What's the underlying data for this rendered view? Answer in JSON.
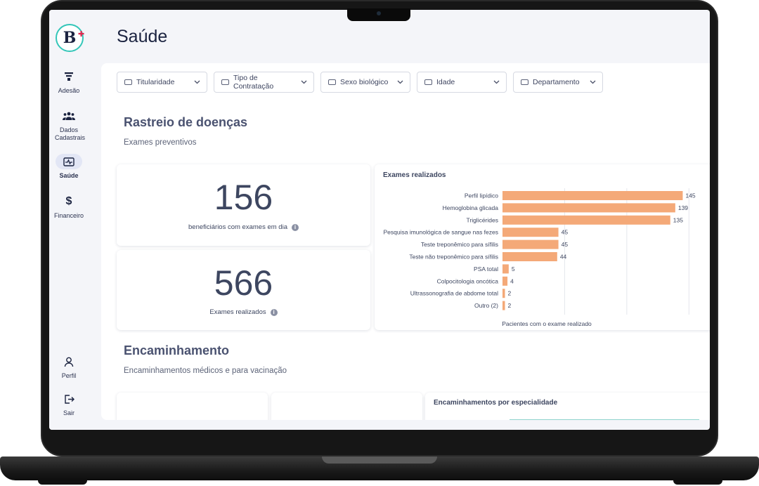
{
  "page": {
    "title": "Saúde"
  },
  "sidebar": {
    "logo_letter": "B",
    "items": [
      {
        "label": "Adesão",
        "icon": "funnel-icon",
        "active": false
      },
      {
        "label": "Dados Cadastrais",
        "icon": "people-icon",
        "active": false
      },
      {
        "label": "Saúde",
        "icon": "health-monitor-icon",
        "active": true
      },
      {
        "label": "Financeiro",
        "icon": "dollar-icon",
        "active": false
      }
    ],
    "bottom": [
      {
        "label": "Perfil",
        "icon": "user-icon"
      },
      {
        "label": "Sair",
        "icon": "logout-icon"
      }
    ]
  },
  "filters": [
    {
      "label": "Titularidade"
    },
    {
      "label": "Tipo de Contratação"
    },
    {
      "label": "Sexo biológico"
    },
    {
      "label": "Idade"
    },
    {
      "label": "Departamento"
    }
  ],
  "screening": {
    "title": "Rastreio de doenças",
    "subtitle": "Exames preventivos",
    "kpi_beneficiaries": {
      "value": "156",
      "caption": "beneficiários com exames em dia"
    },
    "kpi_exams": {
      "value": "566",
      "caption": "Exames realizados"
    }
  },
  "chart_data": {
    "type": "bar",
    "orientation": "horizontal",
    "title": "Exames realizados",
    "xlabel": "Pacientes com o exame realizado",
    "categories": [
      "Perfil lipídico",
      "Hemoglobina glicada",
      "Triglicérides",
      "Pesquisa imunológica de sangue nas fezes",
      "Teste treponêmico para sífilis",
      "Teste não treponêmico para sífilis",
      "PSA total",
      "Colpocitologia oncótica",
      "Ultrassonografia de abdome total",
      "Outro (2)"
    ],
    "values": [
      145,
      139,
      135,
      45,
      45,
      44,
      5,
      4,
      2,
      2
    ],
    "xlim": [
      0,
      160
    ],
    "grid": true,
    "bar_color": "#f4a978"
  },
  "referrals": {
    "title": "Encaminhamento",
    "subtitle": "Encaminhamentos médicos e para vacinação",
    "chart_title": "Encaminhamentos por especialidade"
  }
}
